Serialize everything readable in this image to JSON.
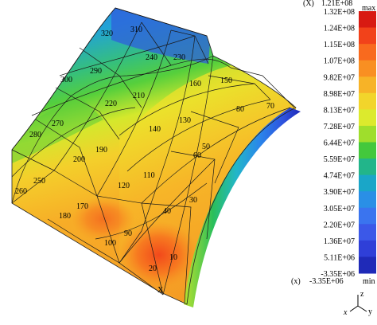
{
  "legend": {
    "max_label": "max",
    "min_label": "min",
    "max_marker": "(X)",
    "max_value": "1.21E+08",
    "min_marker": "(x)",
    "min_value": "-3.35E+06",
    "ticks": [
      "1.32E+08",
      "1.24E+08",
      "1.15E+08",
      "1.07E+08",
      "9.82E+07",
      "8.98E+07",
      "8.13E+07",
      "7.28E+07",
      "6.44E+07",
      "5.59E+07",
      "4.74E+07",
      "3.90E+07",
      "3.05E+07",
      "2.20E+07",
      "1.36E+07",
      "5.11E+06",
      "-3.35E+06"
    ],
    "colors": [
      "#d81a12",
      "#f2421a",
      "#f96a1e",
      "#f98f22",
      "#f7b327",
      "#f2d52b",
      "#dcea2d",
      "#9fde2c",
      "#43c83c",
      "#22b58a",
      "#1aa6c8",
      "#2a8fe6",
      "#3a74ef",
      "#3b58e8",
      "#2f3fd8",
      "#1f2ab8"
    ]
  },
  "axes": {
    "z": "z",
    "x": "x",
    "y": "y"
  },
  "model": {
    "origin_marker": "X",
    "element_labels": [
      "10",
      "20",
      "30",
      "40",
      "50",
      "60",
      "70",
      "80",
      "90",
      "100",
      "110",
      "120",
      "130",
      "140",
      "150",
      "160",
      "170",
      "180",
      "190",
      "200",
      "210",
      "220",
      "230",
      "240",
      "250",
      "260",
      "270",
      "280",
      "290",
      "300",
      "310",
      "320"
    ]
  }
}
